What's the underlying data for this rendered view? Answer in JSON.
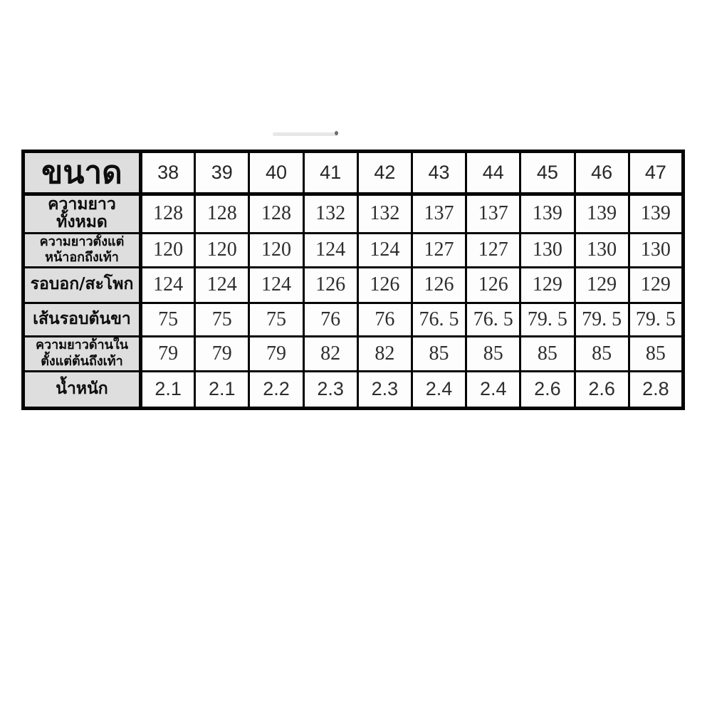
{
  "chart_data": {
    "type": "table",
    "description": "Thai garment size chart, sizes 38-47, measurements in cm and weight in kg",
    "header": {
      "label": "ขนาด",
      "sizes": [
        "38",
        "39",
        "40",
        "41",
        "42",
        "43",
        "44",
        "45",
        "46",
        "47"
      ]
    },
    "rows": [
      {
        "label_lines": [
          "ความยาวทั้งหมด"
        ],
        "values": [
          "128",
          "128",
          "128",
          "132",
          "132",
          "137",
          "137",
          "139",
          "139",
          "139"
        ],
        "value_style": "serif"
      },
      {
        "label_lines": [
          "ความยาวตั้งแต่",
          "หน้าอกถึงเท้า"
        ],
        "values": [
          "120",
          "120",
          "120",
          "124",
          "124",
          "127",
          "127",
          "130",
          "130",
          "130"
        ],
        "value_style": "serif"
      },
      {
        "label_lines": [
          "รอบอก/สะโพก"
        ],
        "values": [
          "124",
          "124",
          "124",
          "126",
          "126",
          "126",
          "126",
          "129",
          "129",
          "129"
        ],
        "value_style": "serif"
      },
      {
        "label_lines": [
          "เส้นรอบต้นขา"
        ],
        "values": [
          "75",
          "75",
          "75",
          "76",
          "76",
          "76. 5",
          "76. 5",
          "79. 5",
          "79. 5",
          "79. 5"
        ],
        "value_style": "serif"
      },
      {
        "label_lines": [
          "ความยาวด้านใน",
          "ตั้งแต่ต้นถึงเท้า"
        ],
        "values": [
          "79",
          "79",
          "79",
          "82",
          "82",
          "85",
          "85",
          "85",
          "85",
          "85"
        ],
        "value_style": "serif"
      },
      {
        "label_lines": [
          "น้ำหนัก"
        ],
        "values": [
          "2.1",
          "2.1",
          "2.2",
          "2.3",
          "2.3",
          "2.4",
          "2.4",
          "2.6",
          "2.6",
          "2.8"
        ],
        "value_style": "sans"
      }
    ],
    "colors": {
      "label_background": "#dedede",
      "cell_background": "#fdfdfd",
      "border": "#050505",
      "text": "#2e2e2e"
    }
  }
}
